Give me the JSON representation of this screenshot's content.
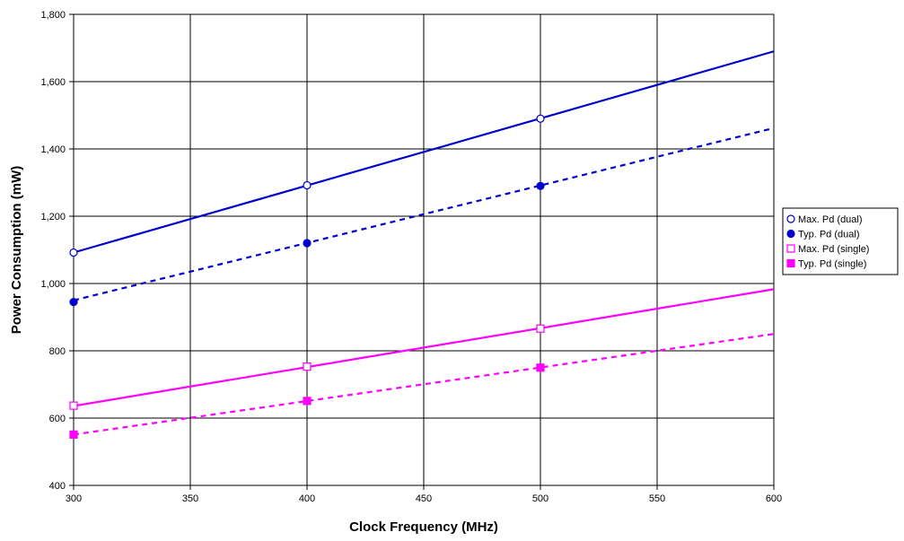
{
  "chart_data": {
    "type": "line",
    "xlabel": "Clock Frequency (MHz)",
    "ylabel": "Power Consumption (mW)",
    "xlim": [
      300,
      600
    ],
    "ylim": [
      400,
      1800
    ],
    "x_ticks": [
      300,
      350,
      400,
      450,
      500,
      550,
      600
    ],
    "y_ticks": [
      400,
      600,
      800,
      1000,
      1200,
      1400,
      1600,
      1800
    ],
    "x_tick_labels": [
      "300",
      "350",
      "400",
      "450",
      "500",
      "550",
      "600"
    ],
    "y_tick_labels": [
      "400",
      "600",
      "800",
      "1,000",
      "1,200",
      "1,400",
      "1,600",
      "1,800"
    ],
    "grid": true,
    "legend_position": "right",
    "series": [
      {
        "name": "Max. Pd (dual)",
        "color": "#0000cc",
        "marker": "open-circle",
        "line_style": "solid",
        "points": [
          [
            300,
            1092
          ],
          [
            400,
            1292
          ],
          [
            500,
            1490
          ]
        ],
        "trend": [
          [
            300,
            1092
          ],
          [
            600,
            1690
          ]
        ]
      },
      {
        "name": "Typ. Pd (dual)",
        "color": "#0000cc",
        "marker": "filled-circle",
        "line_style": "dashed",
        "points": [
          [
            300,
            945
          ],
          [
            400,
            1120
          ],
          [
            500,
            1290
          ]
        ],
        "trend": [
          [
            300,
            950
          ],
          [
            600,
            1462
          ]
        ]
      },
      {
        "name": "Max. Pd (single)",
        "color": "#ff00ff",
        "marker": "open-square",
        "line_style": "solid",
        "points": [
          [
            300,
            637
          ],
          [
            400,
            753
          ],
          [
            500,
            866
          ]
        ],
        "trend": [
          [
            300,
            636
          ],
          [
            600,
            983
          ]
        ]
      },
      {
        "name": "Typ. Pd (single)",
        "color": "#ff00ff",
        "marker": "filled-square",
        "line_style": "dashed",
        "points": [
          [
            300,
            551
          ],
          [
            400,
            651
          ],
          [
            500,
            750
          ]
        ],
        "trend": [
          [
            300,
            551
          ],
          [
            600,
            850
          ]
        ]
      }
    ]
  }
}
